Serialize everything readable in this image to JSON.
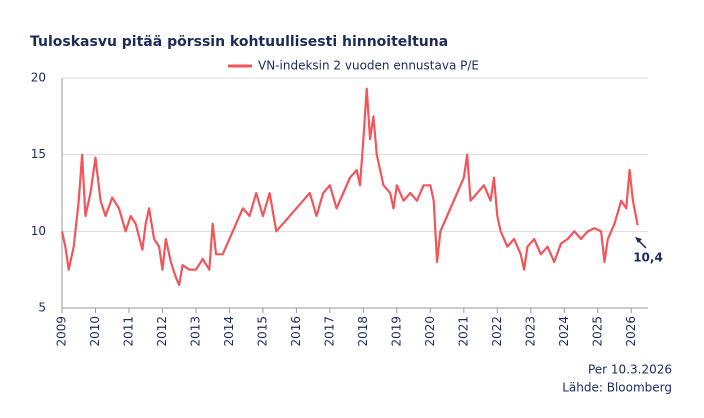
{
  "chart_data": {
    "type": "line",
    "title": "Tuloskasvu pitää pörssin kohtuullisesti hinnoiteltuna",
    "series": [
      {
        "name": "VN-indeksin 2 vuoden ennustava P/E",
        "color": "#f2555a",
        "x": [
          2009.0,
          2009.1,
          2009.2,
          2009.35,
          2009.5,
          2009.6,
          2009.7,
          2009.85,
          2010.0,
          2010.15,
          2010.3,
          2010.5,
          2010.7,
          2010.9,
          2011.05,
          2011.2,
          2011.4,
          2011.5,
          2011.6,
          2011.75,
          2011.9,
          2012.0,
          2012.1,
          2012.25,
          2012.4,
          2012.5,
          2012.6,
          2012.8,
          2013.0,
          2013.2,
          2013.4,
          2013.5,
          2013.6,
          2013.8,
          2014.0,
          2014.2,
          2014.4,
          2014.6,
          2014.8,
          2015.0,
          2015.2,
          2015.4,
          2015.6,
          2015.8,
          2016.0,
          2016.2,
          2016.4,
          2016.6,
          2016.8,
          2017.0,
          2017.2,
          2017.4,
          2017.6,
          2017.8,
          2017.9,
          2018.0,
          2018.1,
          2018.2,
          2018.3,
          2018.4,
          2018.6,
          2018.8,
          2018.9,
          2019.0,
          2019.2,
          2019.4,
          2019.6,
          2019.8,
          2020.0,
          2020.1,
          2020.2,
          2020.3,
          2020.5,
          2020.7,
          2020.9,
          2021.0,
          2021.1,
          2021.2,
          2021.4,
          2021.6,
          2021.8,
          2021.9,
          2022.0,
          2022.1,
          2022.3,
          2022.5,
          2022.7,
          2022.8,
          2022.9,
          2023.1,
          2023.3,
          2023.5,
          2023.7,
          2023.9,
          2024.1,
          2024.3,
          2024.5,
          2024.7,
          2024.9,
          2025.1,
          2025.2,
          2025.3,
          2025.5,
          2025.7,
          2025.85,
          2025.95,
          2026.05,
          2026.19
        ],
        "values": [
          10,
          9,
          7.5,
          9,
          12,
          15,
          11,
          12.5,
          14.8,
          12,
          11,
          12.2,
          11.5,
          10,
          11,
          10.5,
          8.8,
          10.5,
          11.5,
          9.5,
          9,
          7.5,
          9.5,
          8,
          7,
          6.5,
          7.8,
          7.5,
          7.5,
          8.2,
          7.5,
          10.5,
          8.5,
          8.5,
          9.5,
          10.5,
          11.5,
          11,
          12.5,
          11,
          12.5,
          10,
          10.5,
          11,
          11.5,
          12,
          12.5,
          11,
          12.5,
          13,
          11.5,
          12.5,
          13.5,
          14,
          13,
          16,
          19.3,
          16,
          17.5,
          15,
          13,
          12.5,
          11.5,
          13,
          12,
          12.5,
          12,
          13,
          13,
          12,
          8,
          10,
          11,
          12,
          13,
          13.5,
          15,
          12,
          12.5,
          13,
          12,
          13.5,
          11,
          10,
          9,
          9.5,
          8.5,
          7.5,
          9,
          9.5,
          8.5,
          9,
          8,
          9.2,
          9.5,
          10,
          9.5,
          10,
          10.2,
          10,
          8,
          9.5,
          10.5,
          12,
          11.5,
          14,
          12,
          10.4
        ]
      }
    ],
    "annotations": [
      "10,4"
    ],
    "xlim": [
      2009,
      2026.5
    ],
    "xticks": [
      2009,
      2010,
      2011,
      2012,
      2013,
      2014,
      2015,
      2016,
      2017,
      2018,
      2019,
      2020,
      2021,
      2022,
      2023,
      2024,
      2025,
      2026
    ],
    "ylim": [
      5,
      20
    ],
    "yticks": [
      5,
      10,
      15,
      20
    ],
    "grid": true,
    "footnotes": [
      "Per 10.3.2026",
      "Lähde: Bloomberg"
    ]
  }
}
